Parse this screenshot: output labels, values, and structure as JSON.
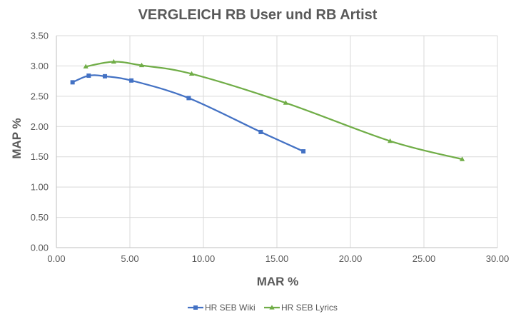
{
  "chart_data": {
    "type": "scatter",
    "title": "VERGLEICH RB User und RB Artist",
    "xlabel": "MAR %",
    "ylabel": "MAP %",
    "xlim": [
      0,
      30
    ],
    "ylim": [
      0,
      3.5
    ],
    "xticks": [
      "0.00",
      "5.00",
      "10.00",
      "15.00",
      "20.00",
      "25.00",
      "30.00"
    ],
    "yticks": [
      "0.00",
      "0.50",
      "1.00",
      "1.50",
      "2.00",
      "2.50",
      "3.00",
      "3.50"
    ],
    "grid": true,
    "legend_position": "bottom",
    "series": [
      {
        "name": "HR SEB Wiki",
        "color": "#4472c4",
        "marker": "square",
        "x": [
          1.1,
          2.2,
          3.3,
          5.1,
          9.0,
          13.9,
          16.8
        ],
        "y": [
          2.73,
          2.84,
          2.83,
          2.76,
          2.47,
          1.91,
          1.59
        ]
      },
      {
        "name": "HR SEB Lyrics",
        "color": "#70ad47",
        "marker": "triangle",
        "x": [
          2.0,
          3.9,
          5.8,
          9.2,
          15.6,
          22.7,
          27.6
        ],
        "y": [
          2.99,
          3.07,
          3.01,
          2.87,
          2.39,
          1.76,
          1.46
        ]
      }
    ]
  }
}
